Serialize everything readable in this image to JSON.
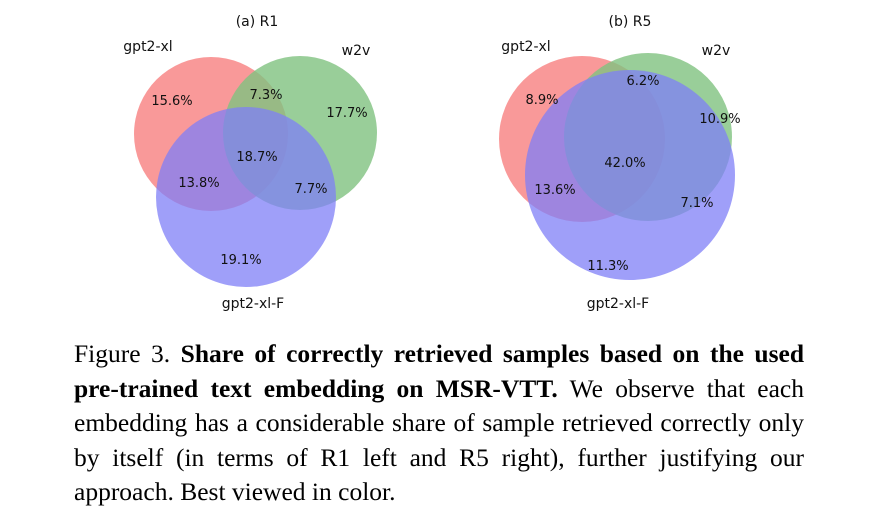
{
  "figure": {
    "diagrams": [
      {
        "title": "(a) R1",
        "set_labels": [
          "gpt2-xl",
          "w2v",
          "gpt2-xl-F"
        ],
        "regions": {
          "only_a": "15.6%",
          "a_b": "7.3%",
          "only_b": "17.7%",
          "center": "18.7%",
          "a_c": "13.8%",
          "b_c": "7.7%",
          "only_c": "19.1%"
        }
      },
      {
        "title": "(b) R5",
        "set_labels": [
          "gpt2-xl",
          "w2v",
          "gpt2-xl-F"
        ],
        "regions": {
          "only_a": "8.9%",
          "a_b": "6.2%",
          "only_b": "10.9%",
          "center": "42.0%",
          "a_c": "13.6%",
          "b_c": "7.1%",
          "only_c": "11.3%"
        }
      }
    ],
    "colors": {
      "gpt2-xl": "#f77f7f",
      "w2v": "#7fc27f",
      "gpt2-xl-F": "#7f7ff7"
    }
  },
  "caption": {
    "label": "Figure 3.",
    "bold": "Share of correctly retrieved samples based on the used pre-trained text embedding on MSR-VTT.",
    "rest": "We observe that each embedding has a considerable share of sample retrieved correctly only by itself (in terms of R1 left and R5 right), further justifying our approach. Best viewed in color."
  }
}
